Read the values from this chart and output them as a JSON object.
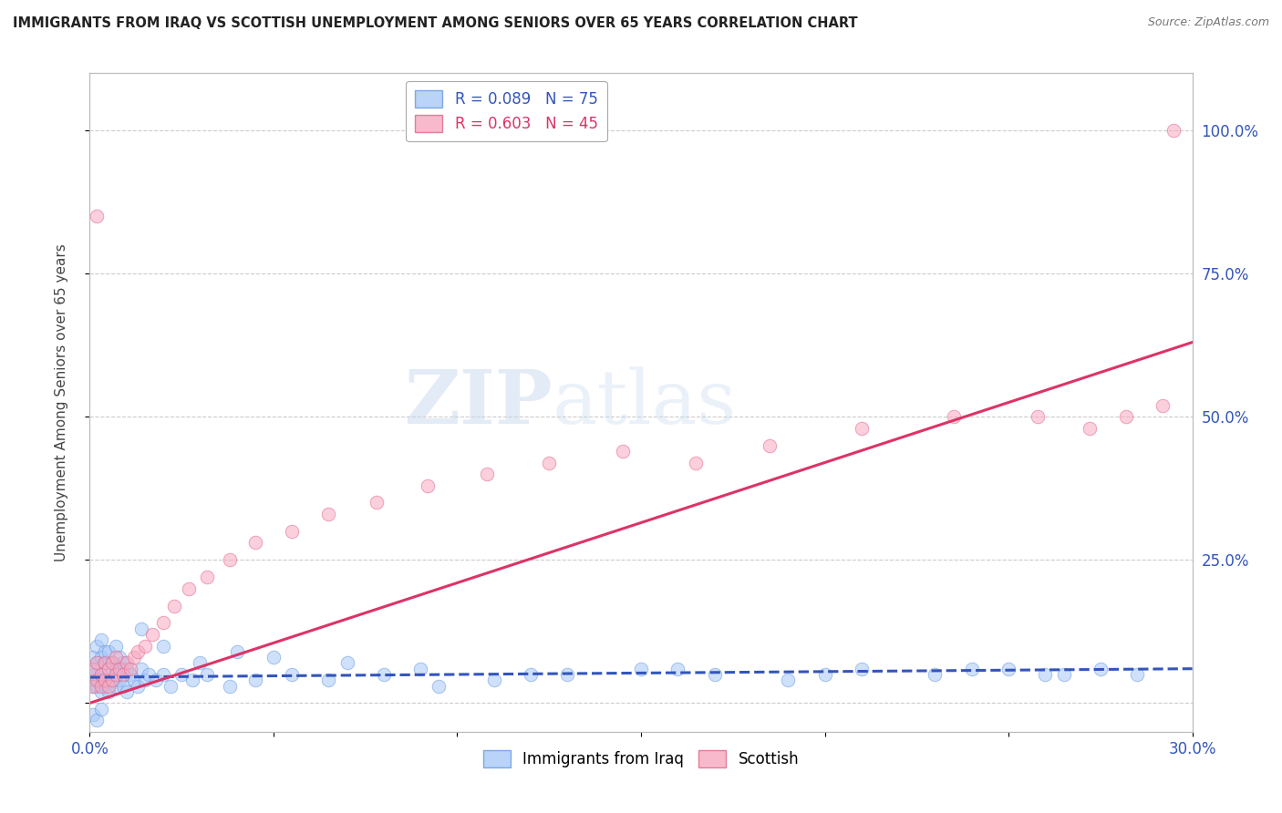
{
  "title": "IMMIGRANTS FROM IRAQ VS SCOTTISH UNEMPLOYMENT AMONG SENIORS OVER 65 YEARS CORRELATION CHART",
  "source": "Source: ZipAtlas.com",
  "ylabel": "Unemployment Among Seniors over 65 years",
  "right_yticklabels": [
    "",
    "25.0%",
    "50.0%",
    "75.0%",
    "100.0%"
  ],
  "right_yticks": [
    0.0,
    0.25,
    0.5,
    0.75,
    1.0
  ],
  "xlim": [
    0.0,
    0.3
  ],
  "ylim": [
    -0.05,
    1.1
  ],
  "legend_r_blue": "R = 0.089",
  "legend_n_blue": "N = 75",
  "legend_r_pink": "R = 0.603",
  "legend_n_pink": "N = 45",
  "blue_scatter_x": [
    0.0005,
    0.001,
    0.001,
    0.001,
    0.0015,
    0.002,
    0.002,
    0.002,
    0.0025,
    0.003,
    0.003,
    0.003,
    0.003,
    0.0035,
    0.004,
    0.004,
    0.004,
    0.005,
    0.005,
    0.005,
    0.006,
    0.006,
    0.007,
    0.007,
    0.007,
    0.008,
    0.008,
    0.009,
    0.009,
    0.01,
    0.01,
    0.011,
    0.012,
    0.013,
    0.014,
    0.015,
    0.016,
    0.018,
    0.02,
    0.022,
    0.025,
    0.028,
    0.032,
    0.038,
    0.045,
    0.055,
    0.065,
    0.08,
    0.095,
    0.11,
    0.13,
    0.15,
    0.17,
    0.19,
    0.21,
    0.23,
    0.25,
    0.265,
    0.275,
    0.285,
    0.014,
    0.02,
    0.03,
    0.04,
    0.05,
    0.07,
    0.09,
    0.12,
    0.16,
    0.2,
    0.24,
    0.26,
    0.001,
    0.002,
    0.003
  ],
  "blue_scatter_y": [
    0.04,
    0.03,
    0.06,
    0.08,
    0.05,
    0.03,
    0.07,
    0.1,
    0.04,
    0.02,
    0.05,
    0.08,
    0.11,
    0.04,
    0.03,
    0.07,
    0.09,
    0.02,
    0.06,
    0.09,
    0.04,
    0.07,
    0.03,
    0.06,
    0.1,
    0.04,
    0.08,
    0.03,
    0.07,
    0.02,
    0.06,
    0.05,
    0.04,
    0.03,
    0.06,
    0.04,
    0.05,
    0.04,
    0.05,
    0.03,
    0.05,
    0.04,
    0.05,
    0.03,
    0.04,
    0.05,
    0.04,
    0.05,
    0.03,
    0.04,
    0.05,
    0.06,
    0.05,
    0.04,
    0.06,
    0.05,
    0.06,
    0.05,
    0.06,
    0.05,
    0.13,
    0.1,
    0.07,
    0.09,
    0.08,
    0.07,
    0.06,
    0.05,
    0.06,
    0.05,
    0.06,
    0.05,
    -0.02,
    -0.03,
    -0.01
  ],
  "pink_scatter_x": [
    0.001,
    0.001,
    0.002,
    0.002,
    0.003,
    0.003,
    0.004,
    0.004,
    0.005,
    0.005,
    0.006,
    0.006,
    0.007,
    0.007,
    0.008,
    0.009,
    0.01,
    0.011,
    0.012,
    0.013,
    0.015,
    0.017,
    0.02,
    0.023,
    0.027,
    0.032,
    0.038,
    0.045,
    0.055,
    0.065,
    0.078,
    0.092,
    0.108,
    0.125,
    0.145,
    0.165,
    0.185,
    0.21,
    0.235,
    0.258,
    0.272,
    0.282,
    0.292,
    0.002,
    0.295
  ],
  "pink_scatter_y": [
    0.03,
    0.06,
    0.04,
    0.07,
    0.03,
    0.05,
    0.04,
    0.07,
    0.03,
    0.06,
    0.04,
    0.07,
    0.05,
    0.08,
    0.06,
    0.05,
    0.07,
    0.06,
    0.08,
    0.09,
    0.1,
    0.12,
    0.14,
    0.17,
    0.2,
    0.22,
    0.25,
    0.28,
    0.3,
    0.33,
    0.35,
    0.38,
    0.4,
    0.42,
    0.44,
    0.42,
    0.45,
    0.48,
    0.5,
    0.5,
    0.48,
    0.5,
    0.52,
    0.85,
    1.0
  ],
  "blue_trend_x": [
    0.0,
    0.3
  ],
  "blue_trend_y": [
    0.045,
    0.06
  ],
  "pink_trend_x": [
    0.0,
    0.3
  ],
  "pink_trend_y": [
    0.0,
    0.63
  ],
  "scatter_alpha": 0.55,
  "scatter_size": 110,
  "blue_color": "#a8c8f8",
  "pink_color": "#f8a8c0",
  "blue_edge": "#6699dd",
  "pink_edge": "#dd6688",
  "trend_blue": "#3355bb",
  "trend_pink": "#dd3366",
  "watermark_zip": "ZIP",
  "watermark_atlas": "atlas",
  "background_color": "#ffffff",
  "grid_color": "#cccccc",
  "text_color": "#3355bb"
}
